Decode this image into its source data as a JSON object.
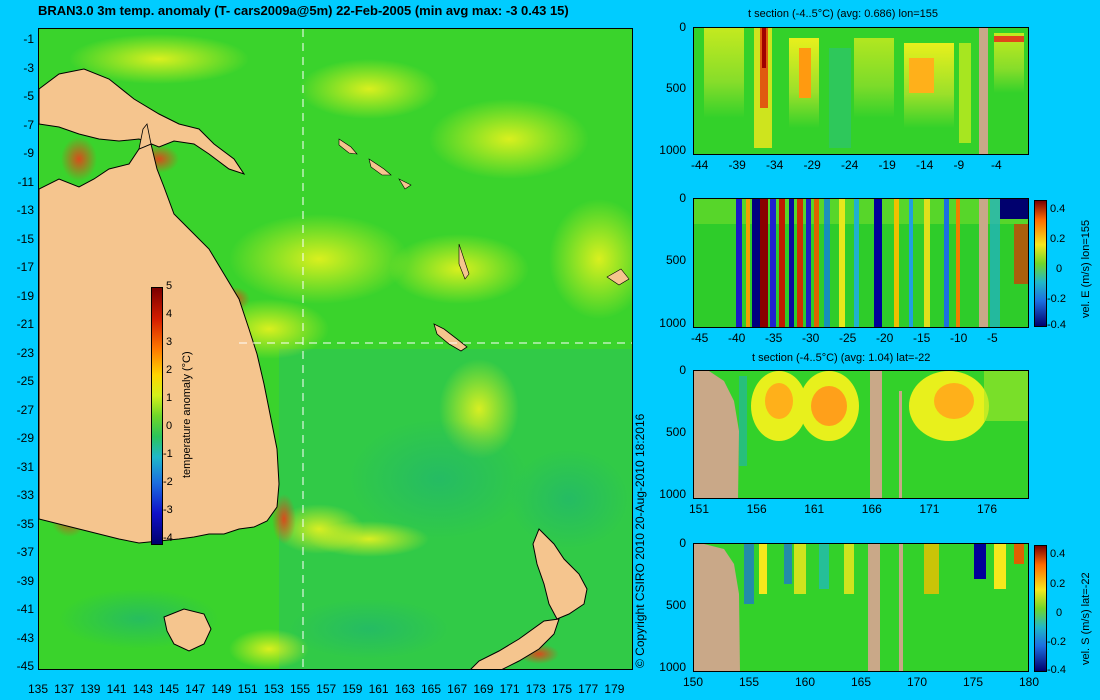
{
  "title": "BRAN3.0 3m temp. anomaly (T- cars2009a@5m) 22-Feb-2005 (min avg max: -3 0.43 15)",
  "copyright": "© Copyright CSIRO 2010  20-Aug-2010 18:2016",
  "colors": {
    "background": "#00ccff",
    "land": "#f5c58e",
    "ocean_base": "#33d12a",
    "section_land": "#c9a888"
  },
  "map": {
    "lat_ticks": [
      "-1",
      "-3",
      "-5",
      "-7",
      "-9",
      "-11",
      "-13",
      "-15",
      "-17",
      "-19",
      "-21",
      "-23",
      "-25",
      "-27",
      "-29",
      "-31",
      "-33",
      "-35",
      "-37",
      "-39",
      "-41",
      "-43",
      "-45"
    ],
    "lon_ticks": [
      "135",
      "137",
      "139",
      "141",
      "143",
      "145",
      "147",
      "149",
      "151",
      "153",
      "155",
      "157",
      "159",
      "161",
      "163",
      "165",
      "167",
      "169",
      "171",
      "173",
      "175",
      "177",
      "179"
    ],
    "colorbar": {
      "label": "temperature anomaly (°C)",
      "ticks": [
        "5",
        "4",
        "3",
        "2",
        "1",
        "0",
        "-1",
        "-2",
        "-3",
        "-4"
      ],
      "range": [
        -4,
        5
      ]
    }
  },
  "panels": [
    {
      "title": "t section (-4..5°C) (avg: 0.686) lon=155",
      "x_ticks": [
        "-44",
        "-39",
        "-34",
        "-29",
        "-24",
        "-19",
        "-14",
        "-9",
        "-4"
      ],
      "y_ticks": [
        "0",
        "500",
        "1000"
      ],
      "colorbar": null
    },
    {
      "title": "",
      "x_ticks": [
        "-45",
        "-40",
        "-35",
        "-30",
        "-25",
        "-20",
        "-15",
        "-10",
        "-5"
      ],
      "y_ticks": [
        "0",
        "500",
        "1000"
      ],
      "colorbar": {
        "label": "vel. E (m/s) lon=155",
        "ticks": [
          "0.4",
          "0.2",
          "0",
          "-0.2",
          "-0.4"
        ]
      }
    },
    {
      "title": "t section (-4..5°C) (avg: 1.04) lat=-22",
      "x_ticks": [
        "151",
        "156",
        "161",
        "166",
        "171",
        "176"
      ],
      "y_ticks": [
        "0",
        "500",
        "1000"
      ],
      "colorbar": null
    },
    {
      "title": "",
      "x_ticks": [
        "150",
        "155",
        "160",
        "165",
        "170",
        "175",
        "180"
      ],
      "y_ticks": [
        "0",
        "500",
        "1000"
      ],
      "colorbar": {
        "label": "vel. S (m/s) lat=-22",
        "ticks": [
          "0.4",
          "0.2",
          "0",
          "-0.2",
          "-0.4"
        ]
      }
    }
  ]
}
